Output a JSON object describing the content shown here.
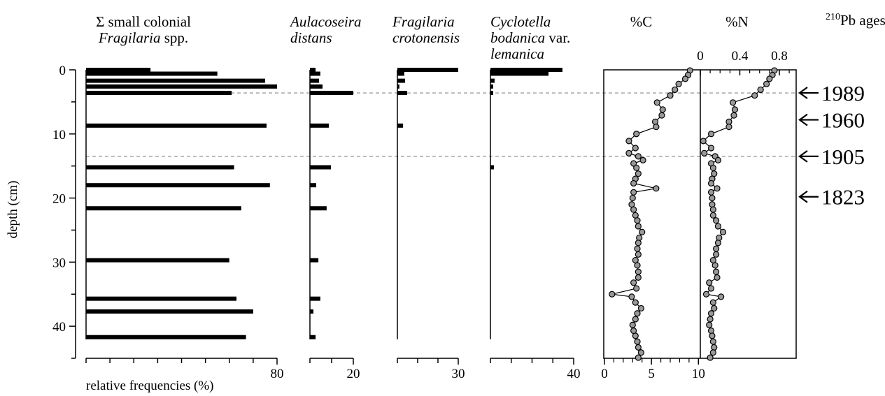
{
  "chart_data": {
    "type": "stratigraphic",
    "y_label": "depth (cm)",
    "x_label": "relative frequencies (%)",
    "ylim": [
      0,
      45
    ],
    "yticks": [
      0,
      10,
      20,
      30,
      40
    ],
    "yminor": [
      5,
      15,
      25,
      35,
      45
    ],
    "depths": [
      0,
      0.6,
      1.7,
      2.6,
      3.6,
      8.7,
      15.2,
      18,
      21.6,
      29.7,
      35.7,
      37.7,
      41.7
    ],
    "series": [
      {
        "name_lines": [
          [
            {
              "text": "Σ small colonial",
              "italic": false
            }
          ],
          [
            {
              "text": "Fragilaria",
              "italic": true
            },
            {
              "text": " spp.",
              "italic": false
            }
          ]
        ],
        "color": "#000000",
        "xlim": [
          0,
          80
        ],
        "xticks": [
          80
        ],
        "xminor": [
          0,
          10,
          20,
          30,
          40,
          50,
          60,
          70
        ],
        "values": [
          27,
          55,
          75,
          80,
          61,
          75.6,
          62,
          77,
          65,
          60,
          63,
          70,
          67
        ]
      },
      {
        "name_lines": [
          [
            {
              "text": "Aulacoseira",
              "italic": true
            }
          ],
          [
            {
              "text": "distans",
              "italic": true
            }
          ]
        ],
        "color": "#000000",
        "xlim": [
          0,
          20
        ],
        "xticks": [
          20
        ],
        "xminor": [
          0,
          10
        ],
        "values": [
          2.6,
          4.8,
          4.2,
          5.8,
          20,
          8.7,
          9.7,
          2.9,
          7.7,
          3.9,
          4.8,
          1.6,
          2.6
        ]
      },
      {
        "name_lines": [
          [
            {
              "text": "Fragilaria",
              "italic": true
            }
          ],
          [
            {
              "text": "crotonensis",
              "italic": true
            }
          ]
        ],
        "color": "#000000",
        "xlim": [
          0,
          30
        ],
        "xticks": [
          30
        ],
        "xminor": [
          0,
          10,
          20
        ],
        "values": [
          30,
          3.4,
          3.8,
          1,
          4.8,
          2.8,
          0,
          0,
          0,
          0,
          0,
          0,
          0
        ]
      },
      {
        "name_lines": [
          [
            {
              "text": "Cyclotella",
              "italic": true
            }
          ],
          [
            {
              "text": "bodanica",
              "italic": true
            },
            {
              "text": " var.",
              "italic": false
            }
          ],
          [
            {
              "text": "lemanica",
              "italic": true
            }
          ]
        ],
        "color": "#000000",
        "xlim": [
          0,
          40
        ],
        "xticks": [
          40
        ],
        "xminor": [
          0,
          10,
          20,
          30
        ],
        "values": [
          34.6,
          27.9,
          2,
          1.3,
          1.3,
          0,
          1.7,
          0,
          0,
          0,
          0,
          0,
          0
        ]
      }
    ],
    "geochem": {
      "depths": [
        0.1,
        0.8,
        1.4,
        2.2,
        3.1,
        4.0,
        5.1,
        6.2,
        7.1,
        8.1,
        8.9,
        10.0,
        11.1,
        12.2,
        13.0,
        13.5,
        14.1,
        14.6,
        15.3,
        16.2,
        17.0,
        17.7,
        18.5,
        19.1,
        20.0,
        21.0,
        21.8,
        22.7,
        23.5,
        24.4,
        25.3,
        26.2,
        27.0,
        27.9,
        28.8,
        29.7,
        30.5,
        31.5,
        32.4,
        33.2,
        34.1,
        35.0,
        35.4,
        36.3,
        37.2,
        38.0,
        38.9,
        39.8,
        40.7,
        41.5,
        42.4,
        43.3,
        44.1,
        44.9
      ],
      "series": [
        {
          "name": "%C",
          "color": "#999999",
          "xlim": [
            0,
            10.2
          ],
          "xticks": [
            0,
            5,
            10
          ],
          "xminor": [
            1,
            2,
            3,
            4,
            6,
            7,
            8,
            9
          ],
          "axis_side": "bottom",
          "values": [
            9.1,
            8.9,
            8.6,
            7.9,
            7.5,
            7.0,
            5.6,
            6.2,
            6.1,
            5.4,
            5.5,
            3.4,
            2.6,
            3.3,
            2.6,
            3.6,
            4.1,
            3.1,
            3.4,
            3.6,
            3.3,
            3.1,
            5.5,
            3.1,
            3.0,
            2.9,
            3.1,
            3.3,
            3.5,
            3.6,
            4.0,
            3.7,
            3.6,
            3.5,
            3.6,
            3.3,
            3.5,
            3.6,
            3.6,
            3.1,
            3.4,
            0.8,
            2.9,
            3.3,
            3.9,
            3.5,
            3.3,
            3.0,
            3.1,
            3.3,
            3.5,
            3.6,
            3.9,
            3.6
          ]
        },
        {
          "name": "%N",
          "color": "#999999",
          "xlim": [
            0,
            0.97
          ],
          "xticks": [
            0,
            0.4,
            0.8
          ],
          "xminor": [
            0.1,
            0.2,
            0.3,
            0.5,
            0.6,
            0.7,
            0.9
          ],
          "axis_side": "top",
          "values": [
            0.75,
            0.73,
            0.7,
            0.67,
            0.61,
            0.55,
            0.33,
            0.35,
            0.34,
            0.29,
            0.29,
            0.11,
            0.03,
            0.11,
            0.04,
            0.15,
            0.18,
            0.11,
            0.13,
            0.14,
            0.12,
            0.11,
            0.17,
            0.11,
            0.12,
            0.12,
            0.13,
            0.13,
            0.16,
            0.18,
            0.23,
            0.19,
            0.18,
            0.16,
            0.16,
            0.13,
            0.15,
            0.16,
            0.17,
            0.09,
            0.11,
            0.06,
            0.21,
            0.13,
            0.14,
            0.11,
            0.1,
            0.09,
            0.11,
            0.12,
            0.13,
            0.14,
            0.13,
            0.1
          ]
        }
      ]
    },
    "ages_title": {
      "sup": "210",
      "text": "Pb ages"
    },
    "ages": [
      {
        "label": "1989",
        "depth": 3.6
      },
      {
        "label": "1960",
        "depth": 7.8
      },
      {
        "label": "1905",
        "depth": 13.5
      },
      {
        "label": "1823",
        "depth": 19.8
      }
    ],
    "dashed_lines": [
      3.6,
      13.5
    ]
  }
}
